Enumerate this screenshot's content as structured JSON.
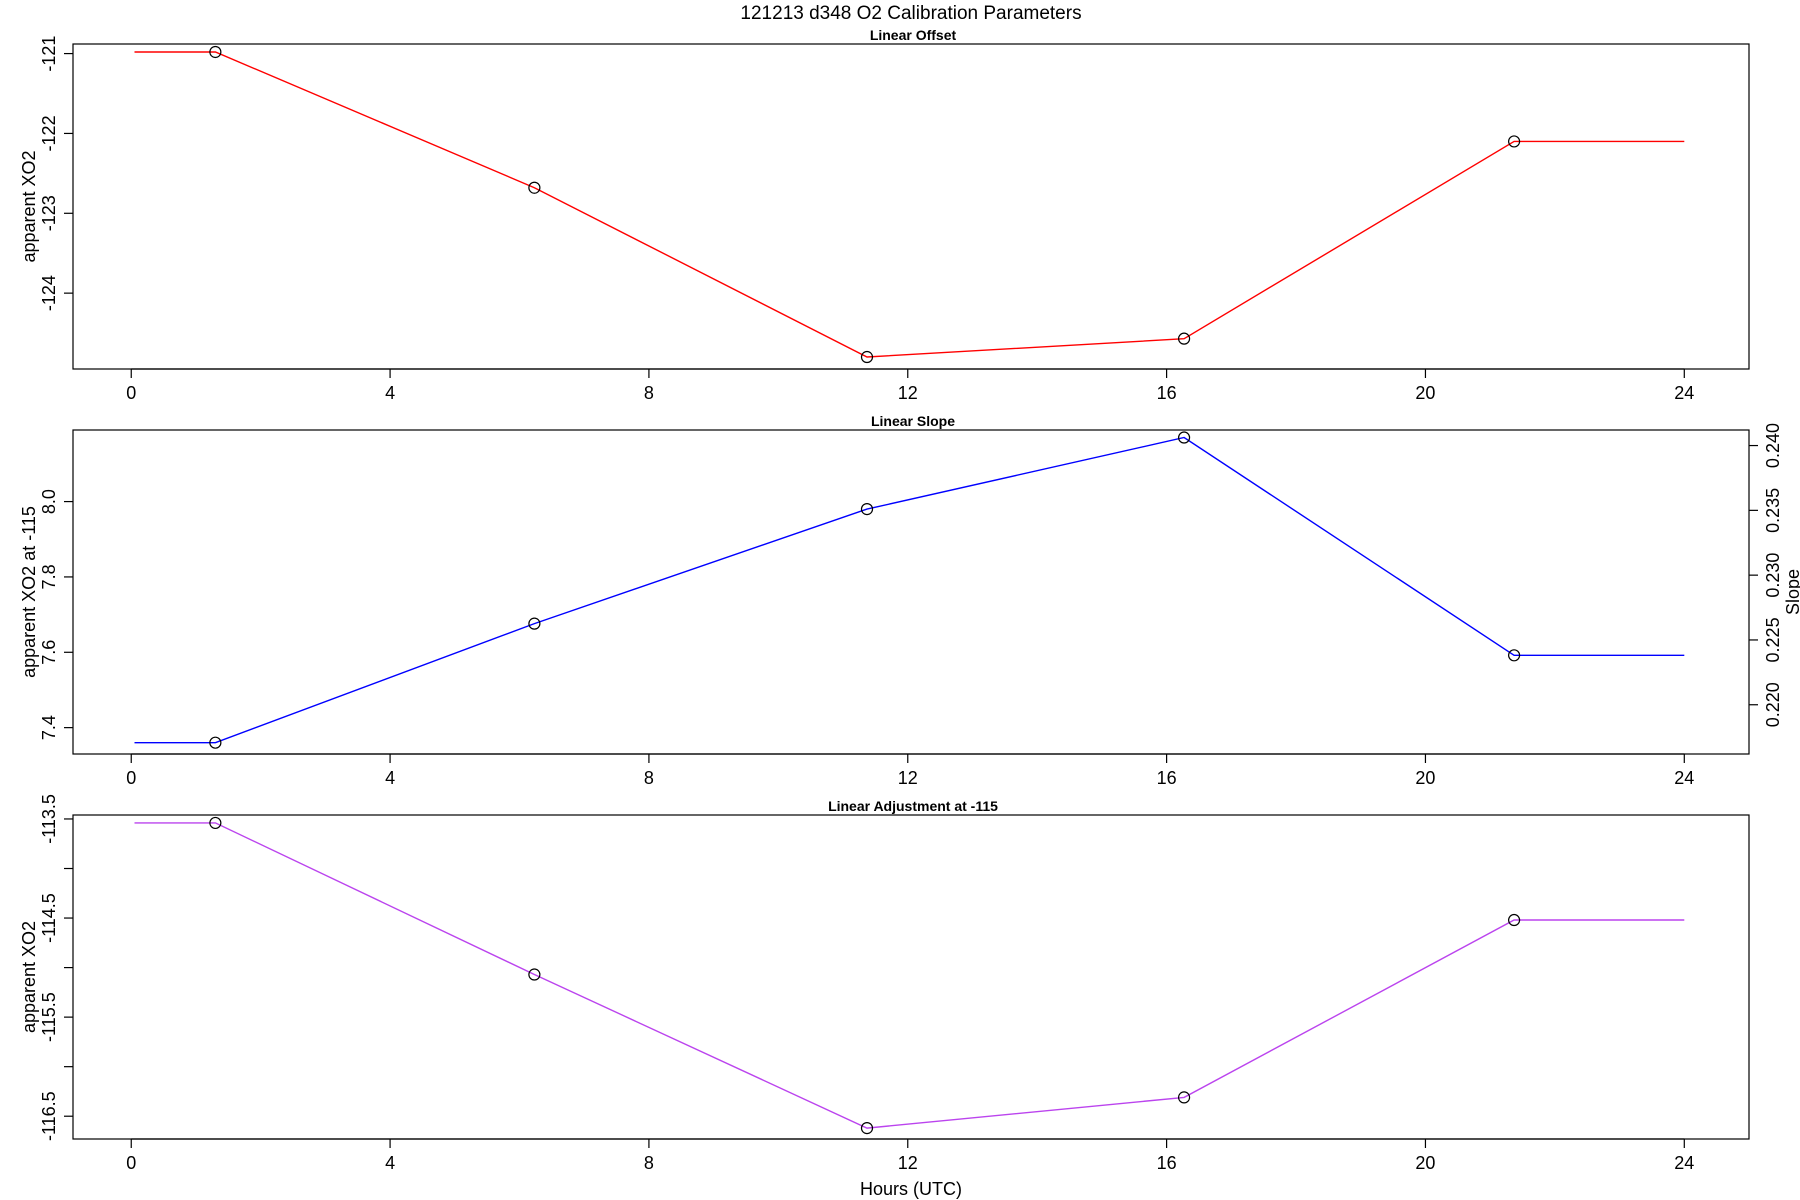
{
  "main_title": "121213   d348   O2 Calibration Parameters",
  "xlabel": "Hours (UTC)",
  "chart_data": [
    {
      "type": "line",
      "title": "Linear Offset",
      "ylabel": "apparent XO2",
      "xlabel": "",
      "xlim": [
        -0.9,
        25.0
      ],
      "ylim": [
        -124.95,
        -120.88
      ],
      "x_ticks": [
        0,
        4,
        8,
        12,
        16,
        20,
        24
      ],
      "y_ticks": [
        -124,
        -123,
        -122,
        -121
      ],
      "line_color": "#ff0000",
      "points": {
        "x": [
          1.3,
          6.23,
          11.37,
          16.27,
          21.37
        ],
        "y": [
          -120.98,
          -122.68,
          -124.8,
          -124.57,
          -122.1
        ]
      },
      "line_ends": {
        "start": [
          0.05,
          -120.98
        ],
        "end": [
          24.0,
          -122.1
        ]
      }
    },
    {
      "type": "line",
      "title": "Linear Slope",
      "ylabel": "apparent XO2 at -115",
      "y2label": "Slope",
      "xlabel": "",
      "xlim": [
        -0.9,
        25.0
      ],
      "ylim": [
        7.33,
        8.19
      ],
      "y2lim": [
        0.2162,
        0.2412
      ],
      "x_ticks": [
        0,
        4,
        8,
        12,
        16,
        20,
        24
      ],
      "y_ticks": [
        7.4,
        7.6,
        7.8,
        8.0
      ],
      "y2_ticks": [
        0.22,
        0.225,
        0.23,
        0.235,
        0.24
      ],
      "line_color": "#0000ff",
      "points": {
        "x": [
          1.3,
          6.23,
          11.37,
          16.27,
          21.37
        ],
        "y": [
          7.36,
          7.676,
          7.98,
          8.17,
          7.592
        ]
      },
      "line_ends": {
        "start": [
          0.05,
          7.36
        ],
        "end": [
          24.0,
          7.592
        ]
      }
    },
    {
      "type": "line",
      "title": "Linear Adjustment at -115",
      "ylabel": "apparent XO2",
      "xlabel": "Hours (UTC)",
      "xlim": [
        -0.9,
        25.0
      ],
      "ylim": [
        -116.73,
        -113.46
      ],
      "x_ticks": [
        0,
        4,
        8,
        12,
        16,
        20,
        24
      ],
      "y_ticks": [
        -116.5,
        -116.0,
        -115.5,
        -115.0,
        -114.5,
        -114.0,
        -113.5
      ],
      "y_tick_labels": [
        "-116.5",
        "",
        "-115.5",
        "",
        "-114.5",
        "",
        "-113.5"
      ],
      "line_color": "#bb44ee",
      "points": {
        "x": [
          1.3,
          6.23,
          11.37,
          16.27,
          21.37
        ],
        "y": [
          -113.54,
          -115.07,
          -116.62,
          -116.31,
          -114.52
        ]
      },
      "line_ends": {
        "start": [
          0.05,
          -113.54
        ],
        "end": [
          24.0,
          -114.52
        ]
      }
    }
  ]
}
